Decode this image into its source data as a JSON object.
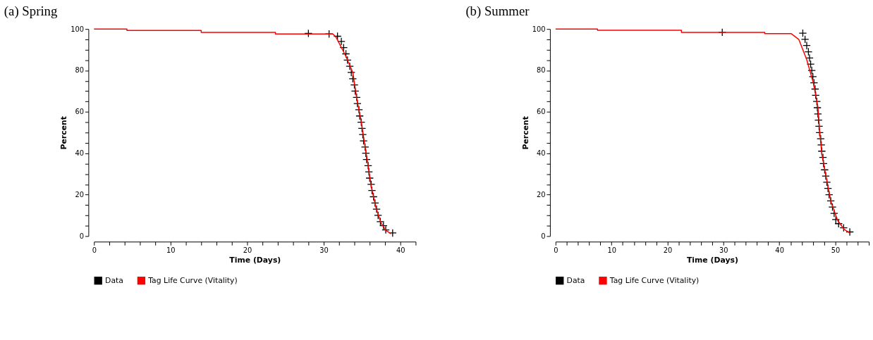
{
  "chart_data": [
    {
      "type": "line",
      "title": "(a)  Spring",
      "xlabel": "Time (Days)",
      "ylabel": "Percent",
      "xlim": [
        0,
        42
      ],
      "ylim": [
        0,
        100
      ],
      "xticks": [
        0,
        {
          "value": 2,
          "label": null
        },
        {
          "value": 4,
          "label": null
        },
        {
          "value": 6,
          "label": null
        },
        {
          "value": 8,
          "label": null
        },
        10,
        {
          "value": 12,
          "label": null
        },
        {
          "value": 14,
          "label": null
        },
        {
          "value": 16,
          "label": null
        },
        {
          "value": 18,
          "label": null
        },
        20,
        {
          "value": 22,
          "label": null
        },
        {
          "value": 24,
          "label": null
        },
        {
          "value": 26,
          "label": null
        },
        {
          "value": 28,
          "label": null
        },
        30,
        {
          "value": 32,
          "label": null
        },
        {
          "value": 34,
          "label": null
        },
        {
          "value": 36,
          "label": null
        },
        {
          "value": 38,
          "label": null
        },
        40,
        {
          "value": 42,
          "label": null
        }
      ],
      "yticks": [
        0,
        {
          "value": 5,
          "label": null
        },
        {
          "value": 10,
          "label": null
        },
        {
          "value": 15,
          "label": null
        },
        20,
        {
          "value": 25,
          "label": null
        },
        {
          "value": 30,
          "label": null
        },
        {
          "value": 35,
          "label": null
        },
        40,
        {
          "value": 45,
          "label": null
        },
        {
          "value": 50,
          "label": null
        },
        {
          "value": 55,
          "label": null
        },
        60,
        {
          "value": 65,
          "label": null
        },
        {
          "value": 70,
          "label": null
        },
        {
          "value": 75,
          "label": null
        },
        80,
        {
          "value": 85,
          "label": null
        },
        {
          "value": 90,
          "label": null
        },
        {
          "value": 95,
          "label": null
        },
        100
      ],
      "grid": false,
      "legend": "bottom",
      "series": [
        {
          "name": "Data",
          "type": "scatter",
          "marker": "cross",
          "color": "#000000",
          "x": [
            28.0,
            30.7,
            31.8,
            32.3,
            32.6,
            32.9,
            33.1,
            33.4,
            33.6,
            33.8,
            34.0,
            34.1,
            34.3,
            34.4,
            34.6,
            34.7,
            34.9,
            35.0,
            35.1,
            35.2,
            35.4,
            35.5,
            35.6,
            35.8,
            35.9,
            36.0,
            36.2,
            36.3,
            36.5,
            36.7,
            36.9,
            37.1,
            37.4,
            37.8,
            38.1,
            39.0
          ],
          "values": [
            97.9,
            97.6,
            96.5,
            94,
            91,
            88,
            85,
            82,
            79,
            76,
            73,
            70,
            67,
            64,
            61,
            58,
            55,
            52,
            49,
            46,
            43,
            40,
            37,
            34,
            31,
            28,
            25,
            22,
            19,
            16,
            13,
            10,
            7,
            5,
            3,
            1.5
          ]
        },
        {
          "name": "Tag Life Curve (Vitality)",
          "type": "line",
          "line_style": "solid",
          "color": "#ff0000",
          "x": [
            0,
            4.3,
            4.3,
            14.0,
            14.0,
            23.7,
            23.7,
            31.2,
            31.6,
            32.9,
            33.8,
            34.3,
            34.9,
            35.3,
            35.8,
            36.2,
            36.8,
            37.5,
            38.1,
            38.8
          ],
          "values": [
            100,
            100,
            99.3,
            99.3,
            98.4,
            98.4,
            97.6,
            97.6,
            96.1,
            86.8,
            79,
            66.6,
            55.4,
            45.4,
            34.2,
            24,
            14,
            6.2,
            2.8,
            1.1
          ]
        }
      ]
    },
    {
      "type": "line",
      "title": "(b)  Summer",
      "xlabel": "Time (Days)",
      "ylabel": "Percent",
      "xlim": [
        0,
        56
      ],
      "ylim": [
        0,
        100
      ],
      "xticks": [
        0,
        {
          "value": 2,
          "label": null
        },
        {
          "value": 4,
          "label": null
        },
        {
          "value": 6,
          "label": null
        },
        {
          "value": 8,
          "label": null
        },
        10,
        {
          "value": 12,
          "label": null
        },
        {
          "value": 14,
          "label": null
        },
        {
          "value": 16,
          "label": null
        },
        {
          "value": 18,
          "label": null
        },
        20,
        {
          "value": 22,
          "label": null
        },
        {
          "value": 24,
          "label": null
        },
        {
          "value": 26,
          "label": null
        },
        {
          "value": 28,
          "label": null
        },
        30,
        {
          "value": 32,
          "label": null
        },
        {
          "value": 34,
          "label": null
        },
        {
          "value": 36,
          "label": null
        },
        {
          "value": 38,
          "label": null
        },
        40,
        {
          "value": 42,
          "label": null
        },
        {
          "value": 44,
          "label": null
        },
        {
          "value": 46,
          "label": null
        },
        {
          "value": 48,
          "label": null
        },
        50,
        {
          "value": 52,
          "label": null
        },
        {
          "value": 54,
          "label": null
        },
        {
          "value": 56,
          "label": null
        }
      ],
      "yticks": [
        0,
        {
          "value": 5,
          "label": null
        },
        {
          "value": 10,
          "label": null
        },
        {
          "value": 15,
          "label": null
        },
        20,
        {
          "value": 25,
          "label": null
        },
        {
          "value": 30,
          "label": null
        },
        {
          "value": 35,
          "label": null
        },
        40,
        {
          "value": 45,
          "label": null
        },
        {
          "value": 50,
          "label": null
        },
        {
          "value": 55,
          "label": null
        },
        60,
        {
          "value": 65,
          "label": null
        },
        {
          "value": 70,
          "label": null
        },
        {
          "value": 75,
          "label": null
        },
        80,
        {
          "value": 85,
          "label": null
        },
        {
          "value": 90,
          "label": null
        },
        {
          "value": 95,
          "label": null
        },
        100
      ],
      "grid": false,
      "legend": "bottom",
      "series": [
        {
          "name": "Data",
          "type": "scatter",
          "marker": "cross",
          "color": "#000000",
          "x": [
            29.8,
            44.2,
            44.6,
            44.9,
            45.2,
            45.4,
            45.6,
            45.8,
            46.0,
            46.2,
            46.4,
            46.5,
            46.7,
            46.8,
            46.9,
            47.0,
            47.1,
            47.2,
            47.4,
            47.5,
            47.6,
            47.8,
            47.9,
            48.1,
            48.3,
            48.5,
            48.7,
            48.9,
            49.2,
            49.5,
            49.8,
            50.1,
            50.6,
            51.5,
            52.6
          ],
          "values": [
            98.4,
            98,
            95,
            92,
            89,
            86,
            83,
            80,
            77,
            74,
            71,
            68,
            65,
            62,
            59,
            56,
            53,
            50,
            47,
            44,
            41,
            38,
            35,
            32,
            29,
            26,
            23,
            20,
            17,
            14,
            11,
            8,
            6,
            4,
            2
          ]
        },
        {
          "name": "Tag Life Curve (Vitality)",
          "type": "line",
          "line_style": "solid",
          "color": "#ff0000",
          "x": [
            0,
            7.5,
            7.5,
            22.5,
            22.5,
            37.4,
            37.4,
            42.1,
            43.5,
            44.9,
            46.1,
            46.9,
            47.2,
            47.6,
            48.4,
            49.2,
            50.4,
            51.6,
            52.6
          ],
          "values": [
            100,
            100,
            99.4,
            99.4,
            98.4,
            98.4,
            97.8,
            97.8,
            94.9,
            85.2,
            73.8,
            62.4,
            51,
            39.6,
            28.2,
            16.9,
            7.7,
            3.2,
            1.5
          ]
        }
      ]
    }
  ]
}
